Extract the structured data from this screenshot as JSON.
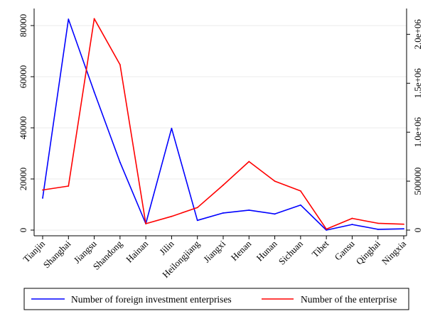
{
  "chart_data": {
    "type": "line",
    "title": "",
    "xlabel": "",
    "ylabel": "",
    "y2label": "",
    "categories": [
      "Tianjin",
      "Shanghai",
      "Jiangsu",
      "Shandong",
      "Hainan",
      "Jilin",
      "Heilongjiang",
      "Jiangxi",
      "Henan",
      "Hunan",
      "Sichuan",
      "Tibet",
      "Gansu",
      "Qinghai",
      "Ningxia"
    ],
    "series": [
      {
        "name": "Number of foreign investment enterprises",
        "axis": "left",
        "color": "#0000ff",
        "values": [
          12500,
          82500,
          54000,
          26500,
          2500,
          39800,
          3800,
          6700,
          7800,
          6300,
          9800,
          0,
          2200,
          300,
          500
        ]
      },
      {
        "name": "Number of the enterprise",
        "axis": "right",
        "color": "#ff0000",
        "values": [
          410000,
          450000,
          2160000,
          1690000,
          65000,
          140000,
          230000,
          460000,
          700000,
          500000,
          400000,
          10000,
          120000,
          70000,
          60000
        ]
      }
    ],
    "ylim": [
      0,
      85000
    ],
    "yticks": [
      0,
      20000,
      40000,
      60000,
      80000
    ],
    "ytick_labels": [
      "0",
      "20000",
      "40000",
      "60000",
      "80000"
    ],
    "y2lim": [
      0,
      2220000
    ],
    "y2ticks": [
      0,
      500000,
      1000000,
      1500000,
      2000000
    ],
    "y2tick_labels": [
      "0",
      "500000",
      "1.0e+06",
      "1.5e+06",
      "2.0e+06"
    ],
    "grid": true,
    "legend_position": "bottom"
  }
}
